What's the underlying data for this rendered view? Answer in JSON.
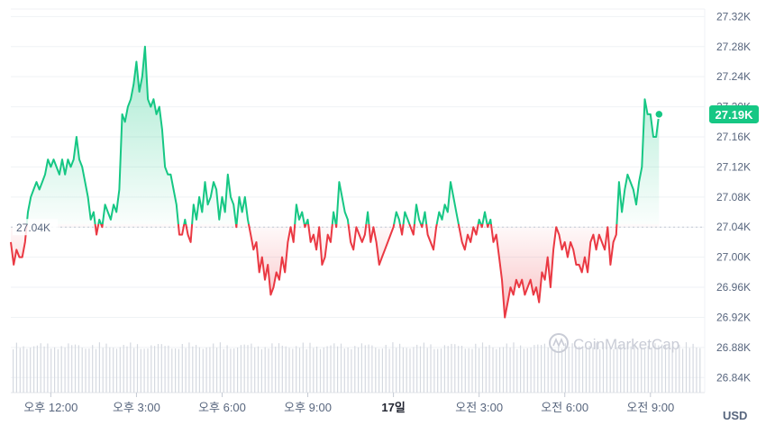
{
  "chart_data": {
    "type": "area",
    "currency": "USD",
    "baseline_value": 27.04,
    "baseline_label": "27.04K",
    "current_label": "27.19K",
    "current_value": 27.19,
    "y_unit": "K USD",
    "ylim": [
      26.82,
      27.33
    ],
    "yticks": [
      {
        "value": 27.32,
        "label": "27.32K"
      },
      {
        "value": 27.28,
        "label": "27.28K"
      },
      {
        "value": 27.24,
        "label": "27.24K"
      },
      {
        "value": 27.2,
        "label": "27.20K"
      },
      {
        "value": 27.16,
        "label": "27.16K"
      },
      {
        "value": 27.12,
        "label": "27.12K"
      },
      {
        "value": 27.08,
        "label": "27.08K"
      },
      {
        "value": 27.04,
        "label": "27.04K"
      },
      {
        "value": 27.0,
        "label": "27.00K"
      },
      {
        "value": 26.96,
        "label": "26.96K"
      },
      {
        "value": 26.92,
        "label": "26.92K"
      },
      {
        "value": 26.88,
        "label": "26.88K"
      },
      {
        "value": 26.84,
        "label": "26.84K"
      }
    ],
    "xlim": [
      10.6,
      34.9
    ],
    "x_unit": "hours since 00:00 on the first day shown (24 = 17일 00:00)",
    "xticks": [
      {
        "value": 12,
        "label": "오후 12:00",
        "bold": false
      },
      {
        "value": 15,
        "label": "오후 3:00",
        "bold": false
      },
      {
        "value": 18,
        "label": "오후 6:00",
        "bold": false
      },
      {
        "value": 21,
        "label": "오후 9:00",
        "bold": false
      },
      {
        "value": 24,
        "label": "17일",
        "bold": true
      },
      {
        "value": 27,
        "label": "오전 3:00",
        "bold": false
      },
      {
        "value": 30,
        "label": "오전 6:00",
        "bold": false
      },
      {
        "value": 33,
        "label": "오전 9:00",
        "bold": false
      }
    ],
    "colors": {
      "up": "#16c784",
      "down": "#ea3943",
      "grid": "#eff2f5",
      "baseline": "#c4c9d3",
      "volume": "#d5d9e0"
    },
    "price_points": [
      [
        10.6,
        27.02
      ],
      [
        10.7,
        26.99
      ],
      [
        10.8,
        27.01
      ],
      [
        10.9,
        27.0
      ],
      [
        11.0,
        27.0
      ],
      [
        11.1,
        27.02
      ],
      [
        11.2,
        27.06
      ],
      [
        11.3,
        27.08
      ],
      [
        11.4,
        27.09
      ],
      [
        11.5,
        27.1
      ],
      [
        11.6,
        27.09
      ],
      [
        11.7,
        27.1
      ],
      [
        11.8,
        27.11
      ],
      [
        11.9,
        27.13
      ],
      [
        12.0,
        27.12
      ],
      [
        12.1,
        27.13
      ],
      [
        12.2,
        27.12
      ],
      [
        12.3,
        27.11
      ],
      [
        12.4,
        27.13
      ],
      [
        12.5,
        27.11
      ],
      [
        12.6,
        27.13
      ],
      [
        12.7,
        27.12
      ],
      [
        12.8,
        27.13
      ],
      [
        12.9,
        27.16
      ],
      [
        13.0,
        27.13
      ],
      [
        13.1,
        27.12
      ],
      [
        13.2,
        27.1
      ],
      [
        13.3,
        27.08
      ],
      [
        13.4,
        27.05
      ],
      [
        13.5,
        27.06
      ],
      [
        13.6,
        27.03
      ],
      [
        13.7,
        27.05
      ],
      [
        13.8,
        27.04
      ],
      [
        13.9,
        27.07
      ],
      [
        14.0,
        27.06
      ],
      [
        14.1,
        27.05
      ],
      [
        14.2,
        27.07
      ],
      [
        14.3,
        27.06
      ],
      [
        14.4,
        27.09
      ],
      [
        14.5,
        27.19
      ],
      [
        14.6,
        27.18
      ],
      [
        14.7,
        27.2
      ],
      [
        14.8,
        27.21
      ],
      [
        14.9,
        27.23
      ],
      [
        15.0,
        27.26
      ],
      [
        15.1,
        27.22
      ],
      [
        15.2,
        27.24
      ],
      [
        15.3,
        27.28
      ],
      [
        15.4,
        27.21
      ],
      [
        15.5,
        27.2
      ],
      [
        15.6,
        27.21
      ],
      [
        15.7,
        27.19
      ],
      [
        15.8,
        27.2
      ],
      [
        15.9,
        27.17
      ],
      [
        16.0,
        27.12
      ],
      [
        16.1,
        27.11
      ],
      [
        16.2,
        27.11
      ],
      [
        16.3,
        27.09
      ],
      [
        16.4,
        27.07
      ],
      [
        16.5,
        27.03
      ],
      [
        16.6,
        27.03
      ],
      [
        16.7,
        27.05
      ],
      [
        16.8,
        27.03
      ],
      [
        16.9,
        27.02
      ],
      [
        17.0,
        27.07
      ],
      [
        17.1,
        27.05
      ],
      [
        17.2,
        27.08
      ],
      [
        17.3,
        27.06
      ],
      [
        17.4,
        27.1
      ],
      [
        17.5,
        27.07
      ],
      [
        17.6,
        27.08
      ],
      [
        17.7,
        27.1
      ],
      [
        17.8,
        27.09
      ],
      [
        17.9,
        27.05
      ],
      [
        18.0,
        27.08
      ],
      [
        18.1,
        27.06
      ],
      [
        18.2,
        27.11
      ],
      [
        18.3,
        27.08
      ],
      [
        18.4,
        27.07
      ],
      [
        18.5,
        27.04
      ],
      [
        18.6,
        27.08
      ],
      [
        18.7,
        27.06
      ],
      [
        18.8,
        27.08
      ],
      [
        18.9,
        27.05
      ],
      [
        19.0,
        27.03
      ],
      [
        19.1,
        27.01
      ],
      [
        19.2,
        27.02
      ],
      [
        19.3,
        26.98
      ],
      [
        19.4,
        27.0
      ],
      [
        19.5,
        26.97
      ],
      [
        19.6,
        26.99
      ],
      [
        19.7,
        26.95
      ],
      [
        19.8,
        26.96
      ],
      [
        19.9,
        26.98
      ],
      [
        20.0,
        26.97
      ],
      [
        20.1,
        27.0
      ],
      [
        20.2,
        26.98
      ],
      [
        20.3,
        27.02
      ],
      [
        20.4,
        27.04
      ],
      [
        20.5,
        27.02
      ],
      [
        20.6,
        27.07
      ],
      [
        20.7,
        27.05
      ],
      [
        20.8,
        27.06
      ],
      [
        20.9,
        27.04
      ],
      [
        21.0,
        27.05
      ],
      [
        21.1,
        27.02
      ],
      [
        21.2,
        27.03
      ],
      [
        21.3,
        27.01
      ],
      [
        21.4,
        27.04
      ],
      [
        21.5,
        26.99
      ],
      [
        21.6,
        27.0
      ],
      [
        21.7,
        27.03
      ],
      [
        21.8,
        27.02
      ],
      [
        21.9,
        27.06
      ],
      [
        22.0,
        27.04
      ],
      [
        22.1,
        27.1
      ],
      [
        22.2,
        27.08
      ],
      [
        22.3,
        27.06
      ],
      [
        22.4,
        27.05
      ],
      [
        22.5,
        27.02
      ],
      [
        22.6,
        27.01
      ],
      [
        22.7,
        27.04
      ],
      [
        22.8,
        27.03
      ],
      [
        22.9,
        27.02
      ],
      [
        23.0,
        27.03
      ],
      [
        23.1,
        27.06
      ],
      [
        23.2,
        27.02
      ],
      [
        23.3,
        27.04
      ],
      [
        23.4,
        27.02
      ],
      [
        23.5,
        26.99
      ],
      [
        23.6,
        27.0
      ],
      [
        23.7,
        27.01
      ],
      [
        23.8,
        27.02
      ],
      [
        23.9,
        27.03
      ],
      [
        24.0,
        27.04
      ],
      [
        24.1,
        27.06
      ],
      [
        24.2,
        27.05
      ],
      [
        24.3,
        27.03
      ],
      [
        24.4,
        27.06
      ],
      [
        24.5,
        27.05
      ],
      [
        24.6,
        27.04
      ],
      [
        24.7,
        27.03
      ],
      [
        24.8,
        27.07
      ],
      [
        24.9,
        27.05
      ],
      [
        25.0,
        27.04
      ],
      [
        25.1,
        27.06
      ],
      [
        25.2,
        27.03
      ],
      [
        25.3,
        27.02
      ],
      [
        25.4,
        27.01
      ],
      [
        25.5,
        27.04
      ],
      [
        25.6,
        27.06
      ],
      [
        25.7,
        27.05
      ],
      [
        25.8,
        27.07
      ],
      [
        25.9,
        27.06
      ],
      [
        26.0,
        27.1
      ],
      [
        26.1,
        27.08
      ],
      [
        26.2,
        27.06
      ],
      [
        26.3,
        27.04
      ],
      [
        26.4,
        27.02
      ],
      [
        26.5,
        27.01
      ],
      [
        26.6,
        27.03
      ],
      [
        26.7,
        27.02
      ],
      [
        26.8,
        27.04
      ],
      [
        26.9,
        27.03
      ],
      [
        27.0,
        27.05
      ],
      [
        27.1,
        27.04
      ],
      [
        27.2,
        27.06
      ],
      [
        27.3,
        27.04
      ],
      [
        27.4,
        27.05
      ],
      [
        27.5,
        27.02
      ],
      [
        27.6,
        27.03
      ],
      [
        27.7,
        27.0
      ],
      [
        27.8,
        26.97
      ],
      [
        27.9,
        26.92
      ],
      [
        28.0,
        26.94
      ],
      [
        28.1,
        26.96
      ],
      [
        28.2,
        26.95
      ],
      [
        28.3,
        26.97
      ],
      [
        28.4,
        26.96
      ],
      [
        28.5,
        26.97
      ],
      [
        28.6,
        26.95
      ],
      [
        28.7,
        26.96
      ],
      [
        28.8,
        26.97
      ],
      [
        28.9,
        26.95
      ],
      [
        29.0,
        26.96
      ],
      [
        29.1,
        26.94
      ],
      [
        29.2,
        26.98
      ],
      [
        29.3,
        26.97
      ],
      [
        29.4,
        27.0
      ],
      [
        29.5,
        26.96
      ],
      [
        29.6,
        27.01
      ],
      [
        29.7,
        27.04
      ],
      [
        29.8,
        27.03
      ],
      [
        29.9,
        27.01
      ],
      [
        30.0,
        27.02
      ],
      [
        30.1,
        27.0
      ],
      [
        30.2,
        27.02
      ],
      [
        30.3,
        27.01
      ],
      [
        30.4,
        26.99
      ],
      [
        30.5,
        26.99
      ],
      [
        30.6,
        26.98
      ],
      [
        30.7,
        27.0
      ],
      [
        30.8,
        26.98
      ],
      [
        30.9,
        27.02
      ],
      [
        31.0,
        27.03
      ],
      [
        31.1,
        27.01
      ],
      [
        31.2,
        27.03
      ],
      [
        31.3,
        27.02
      ],
      [
        31.4,
        27.01
      ],
      [
        31.5,
        27.04
      ],
      [
        31.6,
        26.99
      ],
      [
        31.7,
        27.02
      ],
      [
        31.8,
        27.03
      ],
      [
        31.9,
        27.1
      ],
      [
        32.0,
        27.06
      ],
      [
        32.1,
        27.09
      ],
      [
        32.2,
        27.11
      ],
      [
        32.3,
        27.1
      ],
      [
        32.4,
        27.09
      ],
      [
        32.5,
        27.07
      ],
      [
        32.6,
        27.1
      ],
      [
        32.7,
        27.12
      ],
      [
        32.8,
        27.21
      ],
      [
        32.9,
        27.19
      ],
      [
        33.0,
        27.19
      ],
      [
        33.1,
        27.16
      ],
      [
        33.2,
        27.16
      ],
      [
        33.3,
        27.19
      ]
    ],
    "volume_note": "volume bars shown as thin gray columns across the bottom",
    "watermark": "CoinMarketCap"
  }
}
